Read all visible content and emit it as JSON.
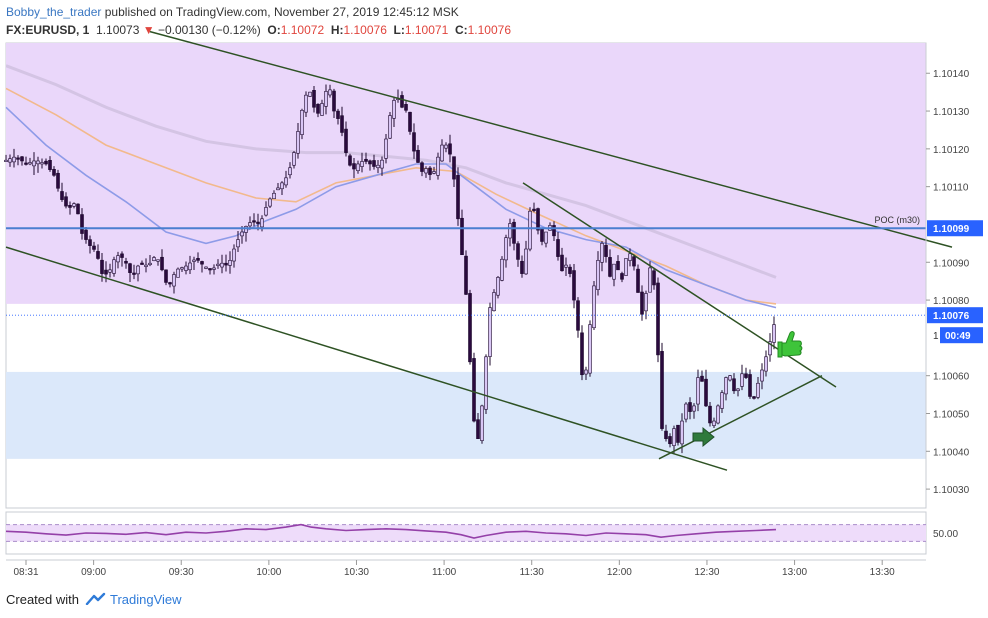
{
  "header": {
    "user": "Bobby_the_trader",
    "published": "published on TradingView.com, November 27, 2019 12:45:12 MSK",
    "symbol": "FX:EURUSD, 1",
    "last": "1.10073",
    "change_arrow": "▼",
    "change": "−0.00130 (−0.12%)",
    "o_label": "O:",
    "o_value": "1.10072",
    "h_label": "H:",
    "h_value": "1.10076",
    "l_label": "L:",
    "l_value": "1.10071",
    "c_label": "C:",
    "c_value": "1.10076"
  },
  "footer": {
    "created_with": "Created with",
    "brand": "TradingView",
    "brand_icon": "tradingview-cloud-icon"
  },
  "colors": {
    "up": "#d9c6f5",
    "down": "#2a0a3e",
    "wick": "#1e0a2e",
    "premium_zone": "#ead7fa",
    "discount_zone": "#dbe8fa",
    "trendline": "#2e5224",
    "poc": "#4a7fd0",
    "ma_fast": "#8e9be8",
    "ma_mid": "#f2b98c",
    "ma_slow": "#d4c4e4",
    "rsi": "#9440a8",
    "price_tag": "#2962ff",
    "arrow": "#2f7a3c",
    "thumb": "#3ec43a"
  },
  "chart_data": {
    "type": "candlestick",
    "yaxis_ticks": [
      "1.10140",
      "1.10130",
      "1.10120",
      "1.10110",
      "1.10090",
      "1.10080",
      "1.10060",
      "1.10050",
      "1.10040",
      "1.10030"
    ],
    "ylim": [
      1.10025,
      1.10148
    ],
    "xaxis_ticks": [
      "08:31",
      "09:00",
      "09:30",
      "10:00",
      "10:30",
      "11:00",
      "11:30",
      "12:00",
      "12:30",
      "13:00",
      "13:30"
    ],
    "poc": {
      "label": "POC (m30)",
      "value": 1.10099,
      "tag": "1.10099"
    },
    "last_price": {
      "value": 1.10076,
      "tag": "1.10076"
    },
    "countdown": {
      "prefix": "1",
      "value": "00:49"
    },
    "zones": {
      "premium": [
        1.10079,
        1.10148
      ],
      "discount": [
        1.10038,
        1.10061
      ]
    },
    "rsi": {
      "level": 50,
      "tick": "50.00",
      "band": [
        30,
        70
      ]
    },
    "close_path": [
      [
        0,
        1.10117
      ],
      [
        10,
        1.10118
      ],
      [
        20,
        1.10116
      ],
      [
        30,
        1.10117
      ],
      [
        40,
        1.10116
      ],
      [
        48,
        1.10113
      ],
      [
        55,
        1.10107
      ],
      [
        62,
        1.10104
      ],
      [
        70,
        1.10106
      ],
      [
        75,
        1.10098
      ],
      [
        80,
        1.10096
      ],
      [
        85,
        1.10094
      ],
      [
        90,
        1.10093
      ],
      [
        97,
        1.10086
      ],
      [
        104,
        1.10088
      ],
      [
        110,
        1.10092
      ],
      [
        118,
        1.10091
      ],
      [
        126,
        1.10086
      ],
      [
        134,
        1.1009
      ],
      [
        142,
        1.10089
      ],
      [
        150,
        1.10092
      ],
      [
        156,
        1.10088
      ],
      [
        162,
        1.10083
      ],
      [
        170,
        1.10088
      ],
      [
        180,
        1.10089
      ],
      [
        190,
        1.10091
      ],
      [
        198,
        1.10089
      ],
      [
        206,
        1.10088
      ],
      [
        214,
        1.1009
      ],
      [
        222,
        1.10089
      ],
      [
        230,
        1.10095
      ],
      [
        238,
        1.10099
      ],
      [
        246,
        1.10101
      ],
      [
        254,
        1.101
      ],
      [
        262,
        1.10106
      ],
      [
        270,
        1.10109
      ],
      [
        276,
        1.10111
      ],
      [
        282,
        1.10113
      ],
      [
        288,
        1.10119
      ],
      [
        293,
        1.10126
      ],
      [
        298,
        1.10133
      ],
      [
        303,
        1.10136
      ],
      [
        308,
        1.10131
      ],
      [
        313,
        1.10129
      ],
      [
        318,
        1.10134
      ],
      [
        323,
        1.10137
      ],
      [
        328,
        1.1013
      ],
      [
        334,
        1.10127
      ],
      [
        340,
        1.10119
      ],
      [
        346,
        1.10114
      ],
      [
        352,
        1.10116
      ],
      [
        358,
        1.10117
      ],
      [
        364,
        1.10116
      ],
      [
        370,
        1.10115
      ],
      [
        376,
        1.10117
      ],
      [
        381,
        1.10124
      ],
      [
        386,
        1.10132
      ],
      [
        391,
        1.10134
      ],
      [
        396,
        1.10131
      ],
      [
        401,
        1.1013
      ],
      [
        406,
        1.10121
      ],
      [
        411,
        1.10117
      ],
      [
        416,
        1.10114
      ],
      [
        421,
        1.10115
      ],
      [
        426,
        1.10112
      ],
      [
        431,
        1.10117
      ],
      [
        436,
        1.10121
      ],
      [
        441,
        1.10121
      ],
      [
        446,
        1.10117
      ],
      [
        450,
        1.10107
      ],
      [
        454,
        1.10096
      ],
      [
        458,
        1.10088
      ],
      [
        462,
        1.10075
      ],
      [
        465,
        1.10058
      ],
      [
        468,
        1.10048
      ],
      [
        470,
        1.1004
      ],
      [
        473,
        1.10045
      ],
      [
        476,
        1.10052
      ],
      [
        480,
        1.10065
      ],
      [
        484,
        1.10078
      ],
      [
        488,
        1.10082
      ],
      [
        492,
        1.10086
      ],
      [
        497,
        1.10092
      ],
      [
        501,
        1.10098
      ],
      [
        505,
        1.10101
      ],
      [
        509,
        1.10093
      ],
      [
        513,
        1.1009
      ],
      [
        517,
        1.10086
      ],
      [
        521,
        1.10096
      ],
      [
        525,
        1.10106
      ],
      [
        529,
        1.10103
      ],
      [
        533,
        1.10097
      ],
      [
        537,
        1.10095
      ],
      [
        541,
        1.10099
      ],
      [
        545,
        1.101
      ],
      [
        549,
        1.10096
      ],
      [
        553,
        1.1009
      ],
      [
        557,
        1.10087
      ],
      [
        561,
        1.1009
      ],
      [
        565,
        1.10086
      ],
      [
        569,
        1.10078
      ],
      [
        573,
        1.1007
      ],
      [
        577,
        1.10057
      ],
      [
        581,
        1.10063
      ],
      [
        585,
        1.10077
      ],
      [
        589,
        1.10086
      ],
      [
        593,
        1.10092
      ],
      [
        597,
        1.10096
      ],
      [
        601,
        1.1009
      ],
      [
        605,
        1.10085
      ],
      [
        609,
        1.10091
      ],
      [
        613,
        1.10087
      ],
      [
        617,
        1.10085
      ],
      [
        621,
        1.10093
      ],
      [
        625,
        1.10092
      ],
      [
        629,
        1.10088
      ],
      [
        633,
        1.1008
      ],
      [
        637,
        1.10075
      ],
      [
        641,
        1.10084
      ],
      [
        645,
        1.1009
      ],
      [
        649,
        1.10082
      ],
      [
        653,
        1.1006
      ],
      [
        656,
        1.10046
      ],
      [
        659,
        1.10042
      ],
      [
        662,
        1.10046
      ],
      [
        665,
        1.1004
      ],
      [
        668,
        1.10046
      ],
      [
        671,
        1.10041
      ],
      [
        674,
        1.10045
      ],
      [
        678,
        1.10051
      ],
      [
        682,
        1.10054
      ],
      [
        686,
        1.10047
      ],
      [
        690,
        1.10057
      ],
      [
        694,
        1.10062
      ],
      [
        698,
        1.10055
      ],
      [
        702,
        1.10049
      ],
      [
        706,
        1.10046
      ],
      [
        710,
        1.1005
      ],
      [
        714,
        1.10054
      ],
      [
        718,
        1.10057
      ],
      [
        722,
        1.10062
      ],
      [
        726,
        1.10058
      ],
      [
        730,
        1.10054
      ],
      [
        734,
        1.10059
      ],
      [
        738,
        1.10062
      ],
      [
        742,
        1.10057
      ],
      [
        746,
        1.10052
      ],
      [
        750,
        1.10056
      ],
      [
        754,
        1.1006
      ],
      [
        758,
        1.10063
      ],
      [
        762,
        1.10067
      ],
      [
        766,
        1.10071
      ],
      [
        770,
        1.10076
      ]
    ],
    "ma_fast": [
      [
        0,
        1.10131
      ],
      [
        40,
        1.10121
      ],
      [
        80,
        1.10113
      ],
      [
        120,
        1.10106
      ],
      [
        160,
        1.10098
      ],
      [
        200,
        1.10095
      ],
      [
        230,
        1.10097
      ],
      [
        260,
        1.10101
      ],
      [
        290,
        1.10104
      ],
      [
        330,
        1.1011
      ],
      [
        370,
        1.10113
      ],
      [
        410,
        1.10116
      ],
      [
        440,
        1.10116
      ],
      [
        470,
        1.1011
      ],
      [
        500,
        1.10104
      ],
      [
        540,
        1.10099
      ],
      [
        580,
        1.10096
      ],
      [
        620,
        1.10094
      ],
      [
        660,
        1.10088
      ],
      [
        700,
        1.10084
      ],
      [
        740,
        1.1008
      ],
      [
        770,
        1.10078
      ]
    ],
    "ma_mid": [
      [
        0,
        1.10136
      ],
      [
        50,
        1.10129
      ],
      [
        100,
        1.10121
      ],
      [
        150,
        1.10116
      ],
      [
        200,
        1.10111
      ],
      [
        250,
        1.10107
      ],
      [
        290,
        1.10106
      ],
      [
        330,
        1.10111
      ],
      [
        370,
        1.10113
      ],
      [
        410,
        1.10115
      ],
      [
        450,
        1.10114
      ],
      [
        490,
        1.10108
      ],
      [
        530,
        1.10103
      ],
      [
        580,
        1.10097
      ],
      [
        620,
        1.10093
      ],
      [
        660,
        1.10089
      ],
      [
        700,
        1.10084
      ],
      [
        740,
        1.1008
      ],
      [
        770,
        1.10079
      ]
    ],
    "ma_slow": [
      [
        0,
        1.10142
      ],
      [
        50,
        1.10137
      ],
      [
        100,
        1.10131
      ],
      [
        150,
        1.10126
      ],
      [
        200,
        1.10122
      ],
      [
        250,
        1.1012
      ],
      [
        300,
        1.10119
      ],
      [
        340,
        1.10119
      ],
      [
        380,
        1.10118
      ],
      [
        420,
        1.10117
      ],
      [
        460,
        1.10115
      ],
      [
        500,
        1.10111
      ],
      [
        540,
        1.10108
      ],
      [
        580,
        1.10105
      ],
      [
        620,
        1.10101
      ],
      [
        660,
        1.10097
      ],
      [
        700,
        1.10093
      ],
      [
        740,
        1.10089
      ],
      [
        770,
        1.10086
      ]
    ],
    "rsi_path": [
      [
        0,
        54
      ],
      [
        20,
        52
      ],
      [
        40,
        48
      ],
      [
        60,
        45
      ],
      [
        80,
        50
      ],
      [
        100,
        49
      ],
      [
        120,
        47
      ],
      [
        140,
        51
      ],
      [
        160,
        46
      ],
      [
        180,
        52
      ],
      [
        200,
        50
      ],
      [
        220,
        54
      ],
      [
        240,
        60
      ],
      [
        260,
        58
      ],
      [
        280,
        64
      ],
      [
        295,
        70
      ],
      [
        305,
        64
      ],
      [
        320,
        60
      ],
      [
        340,
        56
      ],
      [
        360,
        58
      ],
      [
        380,
        60
      ],
      [
        400,
        58
      ],
      [
        420,
        55
      ],
      [
        440,
        52
      ],
      [
        455,
        46
      ],
      [
        468,
        38
      ],
      [
        480,
        44
      ],
      [
        500,
        52
      ],
      [
        520,
        54
      ],
      [
        540,
        50
      ],
      [
        560,
        48
      ],
      [
        580,
        44
      ],
      [
        600,
        50
      ],
      [
        620,
        48
      ],
      [
        640,
        46
      ],
      [
        655,
        40
      ],
      [
        670,
        44
      ],
      [
        690,
        48
      ],
      [
        710,
        52
      ],
      [
        730,
        54
      ],
      [
        750,
        56
      ],
      [
        770,
        58
      ]
    ]
  }
}
